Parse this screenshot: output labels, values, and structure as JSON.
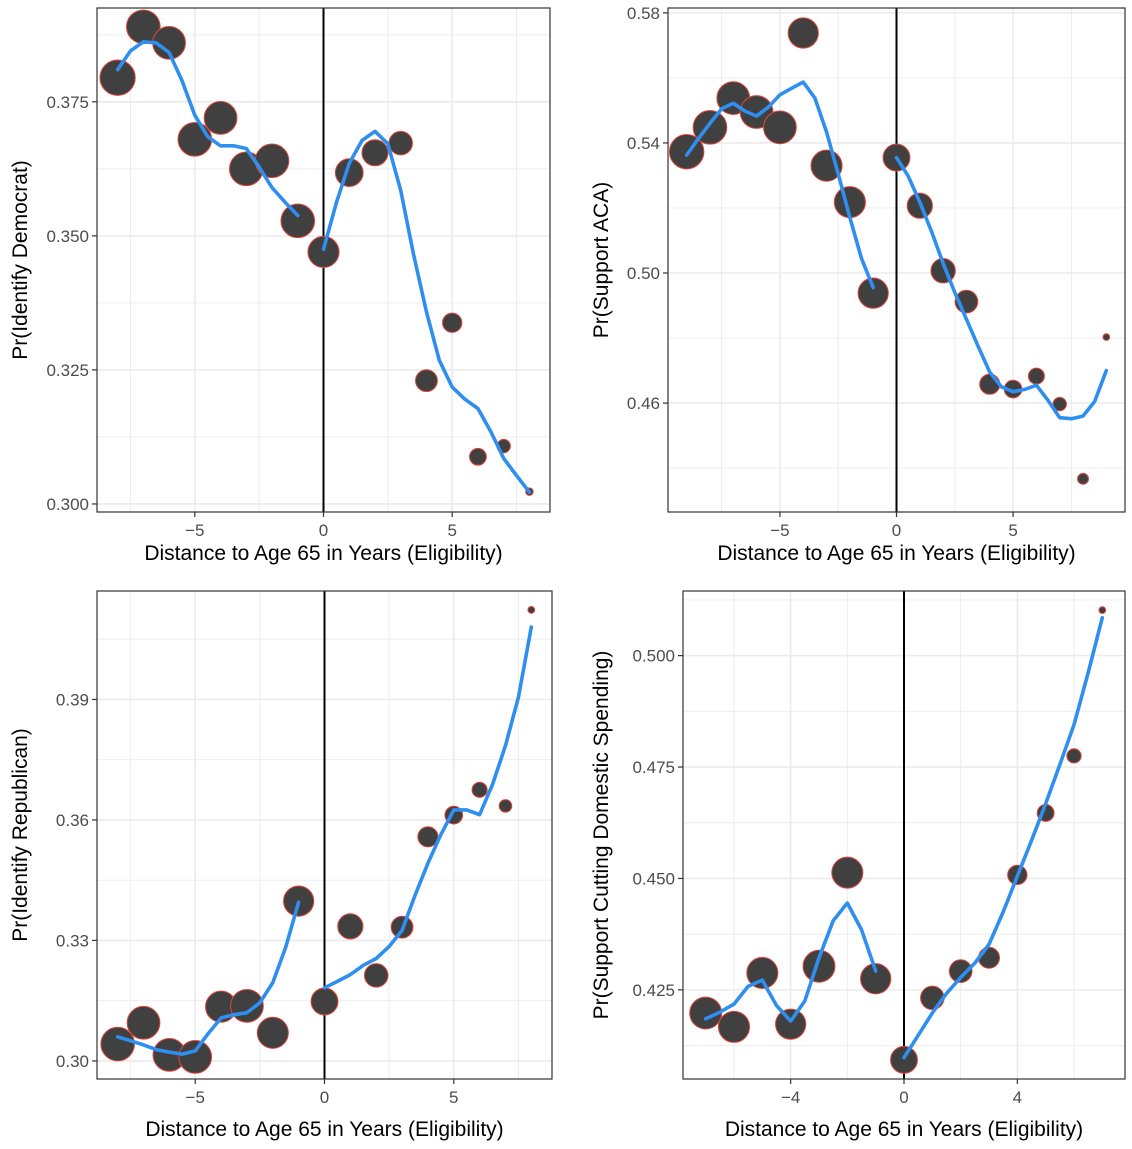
{
  "colors": {
    "point_fill": "#404040",
    "point_stroke": "#e0453a",
    "smooth_line": "#2f8ff0",
    "grid": "#ebebeb",
    "panel_border": "#333333",
    "cutoff_line": "#000000"
  },
  "chart_data": [
    {
      "type": "scatter",
      "ylabel": "Pr(Identify Democrat)",
      "xlabel": "Distance to Age 65 in Years (Eligibility)",
      "xlim": [
        -8.8,
        8.8
      ],
      "ylim": [
        0.2985,
        0.3925
      ],
      "x_ticks": [
        -5,
        0,
        5
      ],
      "x_tick_labels": [
        "−5",
        "0",
        "5"
      ],
      "y_ticks": [
        0.3,
        0.325,
        0.35,
        0.375
      ],
      "y_tick_labels": [
        "0.300",
        "0.325",
        "0.350",
        "0.375"
      ],
      "cutoff": 0,
      "points": [
        {
          "x": -8,
          "y": 0.3795,
          "size": 4.2
        },
        {
          "x": -7,
          "y": 0.389,
          "size": 4.0
        },
        {
          "x": -6,
          "y": 0.386,
          "size": 3.9
        },
        {
          "x": -5,
          "y": 0.368,
          "size": 4.0
        },
        {
          "x": -4,
          "y": 0.372,
          "size": 3.9
        },
        {
          "x": -3,
          "y": 0.3625,
          "size": 4.0
        },
        {
          "x": -2,
          "y": 0.364,
          "size": 4.0
        },
        {
          "x": -1,
          "y": 0.3528,
          "size": 4.0
        },
        {
          "x": 0,
          "y": 0.347,
          "size": 3.7
        },
        {
          "x": 1,
          "y": 0.3618,
          "size": 3.3
        },
        {
          "x": 2,
          "y": 0.3655,
          "size": 3.1
        },
        {
          "x": 3,
          "y": 0.3673,
          "size": 2.8
        },
        {
          "x": 4,
          "y": 0.323,
          "size": 2.6
        },
        {
          "x": 5,
          "y": 0.3338,
          "size": 2.3
        },
        {
          "x": 6,
          "y": 0.3088,
          "size": 2.0
        },
        {
          "x": 7,
          "y": 0.3108,
          "size": 1.6
        },
        {
          "x": 8,
          "y": 0.3023,
          "size": 0.9
        }
      ],
      "smooth_left": [
        [
          -8,
          0.381
        ],
        [
          -7.5,
          0.3845
        ],
        [
          -7,
          0.3862
        ],
        [
          -6.5,
          0.386
        ],
        [
          -6,
          0.3842
        ],
        [
          -5.5,
          0.379
        ],
        [
          -5,
          0.3725
        ],
        [
          -4.5,
          0.3685
        ],
        [
          -4,
          0.3668
        ],
        [
          -3.5,
          0.3668
        ],
        [
          -3,
          0.3663
        ],
        [
          -2.5,
          0.3628
        ],
        [
          -2,
          0.359
        ],
        [
          -1.5,
          0.3563
        ],
        [
          -1,
          0.3538
        ]
      ],
      "smooth_right": [
        [
          0,
          0.3475
        ],
        [
          0.5,
          0.3562
        ],
        [
          1,
          0.3635
        ],
        [
          1.5,
          0.3678
        ],
        [
          2,
          0.3695
        ],
        [
          2.5,
          0.3672
        ],
        [
          3,
          0.3585
        ],
        [
          3.5,
          0.3465
        ],
        [
          4,
          0.3358
        ],
        [
          4.5,
          0.3268
        ],
        [
          5,
          0.3218
        ],
        [
          5.5,
          0.3195
        ],
        [
          6,
          0.3178
        ],
        [
          6.5,
          0.3135
        ],
        [
          7,
          0.3085
        ],
        [
          7.5,
          0.3053
        ],
        [
          8,
          0.3022
        ]
      ]
    },
    {
      "type": "scatter",
      "ylabel": "Pr(Support ACA)",
      "xlabel": "Distance to Age 65 in Years (Eligibility)",
      "xlim": [
        -9.8,
        9.8
      ],
      "ylim": [
        0.4265,
        0.5815
      ],
      "x_ticks": [
        -5,
        0,
        5
      ],
      "x_tick_labels": [
        "−5",
        "0",
        "5"
      ],
      "y_ticks": [
        0.46,
        0.5,
        0.54,
        0.58
      ],
      "y_tick_labels": [
        "0.46",
        "0.50",
        "0.54",
        "0.58"
      ],
      "cutoff": 0,
      "points": [
        {
          "x": -9,
          "y": 0.5373,
          "size": 4.1
        },
        {
          "x": -8,
          "y": 0.5448,
          "size": 4.0
        },
        {
          "x": -7,
          "y": 0.5538,
          "size": 3.9
        },
        {
          "x": -6,
          "y": 0.5495,
          "size": 3.9
        },
        {
          "x": -5,
          "y": 0.5448,
          "size": 3.9
        },
        {
          "x": -4,
          "y": 0.5738,
          "size": 3.6
        },
        {
          "x": -3,
          "y": 0.533,
          "size": 3.7
        },
        {
          "x": -2,
          "y": 0.5218,
          "size": 3.7
        },
        {
          "x": -1,
          "y": 0.4938,
          "size": 3.6
        },
        {
          "x": 0,
          "y": 0.5355,
          "size": 3.2
        },
        {
          "x": 1,
          "y": 0.5207,
          "size": 3.0
        },
        {
          "x": 2,
          "y": 0.5007,
          "size": 2.9
        },
        {
          "x": 3,
          "y": 0.4912,
          "size": 2.7
        },
        {
          "x": 4,
          "y": 0.4658,
          "size": 2.4
        },
        {
          "x": 5,
          "y": 0.4643,
          "size": 2.1
        },
        {
          "x": 6,
          "y": 0.4683,
          "size": 1.9
        },
        {
          "x": 7,
          "y": 0.4597,
          "size": 1.6
        },
        {
          "x": 8,
          "y": 0.4367,
          "size": 1.3
        },
        {
          "x": 9,
          "y": 0.4803,
          "size": 0.8
        }
      ],
      "smooth_left": [
        [
          -9,
          0.5363
        ],
        [
          -8.5,
          0.5413
        ],
        [
          -8,
          0.546
        ],
        [
          -7.5,
          0.5505
        ],
        [
          -7,
          0.5522
        ],
        [
          -6.5,
          0.5498
        ],
        [
          -6,
          0.5483
        ],
        [
          -5.5,
          0.551
        ],
        [
          -5,
          0.5548
        ],
        [
          -4.5,
          0.5568
        ],
        [
          -4,
          0.5587
        ],
        [
          -3.5,
          0.5538
        ],
        [
          -3,
          0.5433
        ],
        [
          -2.5,
          0.5305
        ],
        [
          -2,
          0.517
        ],
        [
          -1.5,
          0.5045
        ],
        [
          -1,
          0.4955
        ]
      ],
      "smooth_right": [
        [
          0,
          0.5355
        ],
        [
          0.5,
          0.5298
        ],
        [
          1,
          0.5218
        ],
        [
          1.5,
          0.5128
        ],
        [
          2,
          0.503
        ],
        [
          2.5,
          0.494
        ],
        [
          3,
          0.4858
        ],
        [
          3.5,
          0.4775
        ],
        [
          4,
          0.4695
        ],
        [
          4.5,
          0.465
        ],
        [
          5,
          0.4635
        ],
        [
          5.5,
          0.4642
        ],
        [
          6,
          0.4655
        ],
        [
          6.5,
          0.4608
        ],
        [
          7,
          0.4555
        ],
        [
          7.5,
          0.4552
        ],
        [
          8,
          0.456
        ],
        [
          8.5,
          0.4605
        ],
        [
          9,
          0.47
        ]
      ]
    },
    {
      "type": "scatter",
      "ylabel": "Pr(Identify Republican)",
      "xlabel": "Distance to Age 65 in Years (Eligibility)",
      "xlim": [
        -8.8,
        8.8
      ],
      "ylim": [
        0.2955,
        0.417
      ],
      "x_ticks": [
        -5,
        0,
        5
      ],
      "x_tick_labels": [
        "−5",
        "0",
        "5"
      ],
      "y_ticks": [
        0.3,
        0.33,
        0.36,
        0.39
      ],
      "y_tick_labels": [
        "0.30",
        "0.33",
        "0.36",
        "0.39"
      ],
      "cutoff": 0,
      "points": [
        {
          "x": -8,
          "y": 0.3042,
          "size": 4.0
        },
        {
          "x": -7,
          "y": 0.3095,
          "size": 3.9
        },
        {
          "x": -6,
          "y": 0.3015,
          "size": 3.9
        },
        {
          "x": -5,
          "y": 0.301,
          "size": 3.9
        },
        {
          "x": -4,
          "y": 0.3135,
          "size": 3.7
        },
        {
          "x": -3,
          "y": 0.3137,
          "size": 3.9
        },
        {
          "x": -2,
          "y": 0.307,
          "size": 3.7
        },
        {
          "x": -1,
          "y": 0.3398,
          "size": 3.6
        },
        {
          "x": 0,
          "y": 0.3148,
          "size": 3.2
        },
        {
          "x": 1,
          "y": 0.3335,
          "size": 3.0
        },
        {
          "x": 2,
          "y": 0.3213,
          "size": 2.8
        },
        {
          "x": 3,
          "y": 0.3333,
          "size": 2.6
        },
        {
          "x": 4,
          "y": 0.3558,
          "size": 2.4
        },
        {
          "x": 5,
          "y": 0.3612,
          "size": 2.1
        },
        {
          "x": 6,
          "y": 0.3675,
          "size": 1.8
        },
        {
          "x": 7,
          "y": 0.3635,
          "size": 1.5
        },
        {
          "x": 8,
          "y": 0.4123,
          "size": 0.8
        }
      ],
      "smooth_left": [
        [
          -8,
          0.306
        ],
        [
          -7.5,
          0.305
        ],
        [
          -7,
          0.304
        ],
        [
          -6.5,
          0.3028
        ],
        [
          -6,
          0.3022
        ],
        [
          -5.5,
          0.3017
        ],
        [
          -5,
          0.3025
        ],
        [
          -4.5,
          0.3068
        ],
        [
          -4,
          0.3107
        ],
        [
          -3.5,
          0.3115
        ],
        [
          -3,
          0.312
        ],
        [
          -2.5,
          0.3145
        ],
        [
          -2,
          0.3195
        ],
        [
          -1.5,
          0.3283
        ],
        [
          -1,
          0.3395
        ]
      ],
      "smooth_right": [
        [
          0,
          0.3182
        ],
        [
          0.5,
          0.3198
        ],
        [
          1,
          0.3215
        ],
        [
          1.5,
          0.3238
        ],
        [
          2,
          0.3255
        ],
        [
          2.5,
          0.3285
        ],
        [
          3,
          0.3325
        ],
        [
          3.5,
          0.3412
        ],
        [
          4,
          0.3492
        ],
        [
          4.5,
          0.3563
        ],
        [
          5,
          0.3625
        ],
        [
          5.5,
          0.3625
        ],
        [
          6,
          0.3613
        ],
        [
          6.5,
          0.3688
        ],
        [
          7,
          0.3785
        ],
        [
          7.5,
          0.3905
        ],
        [
          8,
          0.408
        ]
      ]
    },
    {
      "type": "scatter",
      "ylabel": "Pr(Support Cutting Domestic Spending)",
      "xlabel": "Distance to Age 65 in Years (Eligibility)",
      "xlim": [
        -7.8,
        7.8
      ],
      "ylim": [
        0.405,
        0.5145
      ],
      "x_ticks": [
        -4,
        0,
        4
      ],
      "x_tick_labels": [
        "−4",
        "0",
        "4"
      ],
      "y_ticks": [
        0.425,
        0.45,
        0.475,
        0.5
      ],
      "y_tick_labels": [
        "0.425",
        "0.450",
        "0.475",
        "0.500"
      ],
      "cutoff": 0,
      "points": [
        {
          "x": -7,
          "y": 0.4198,
          "size": 3.8
        },
        {
          "x": -6,
          "y": 0.4167,
          "size": 3.7
        },
        {
          "x": -5,
          "y": 0.4288,
          "size": 3.7
        },
        {
          "x": -4,
          "y": 0.4173,
          "size": 3.6
        },
        {
          "x": -3,
          "y": 0.4303,
          "size": 3.8
        },
        {
          "x": -2,
          "y": 0.4513,
          "size": 3.7
        },
        {
          "x": -1,
          "y": 0.4275,
          "size": 3.6
        },
        {
          "x": 0,
          "y": 0.4093,
          "size": 3.2
        },
        {
          "x": 1,
          "y": 0.4232,
          "size": 2.8
        },
        {
          "x": 2,
          "y": 0.4292,
          "size": 2.7
        },
        {
          "x": 3,
          "y": 0.4322,
          "size": 2.5
        },
        {
          "x": 4,
          "y": 0.4508,
          "size": 2.3
        },
        {
          "x": 5,
          "y": 0.4647,
          "size": 2.0
        },
        {
          "x": 6,
          "y": 0.4775,
          "size": 1.7
        },
        {
          "x": 7,
          "y": 0.5102,
          "size": 0.8
        }
      ],
      "smooth_left": [
        [
          -7,
          0.4185
        ],
        [
          -6.5,
          0.42
        ],
        [
          -6,
          0.4218
        ],
        [
          -5.5,
          0.4258
        ],
        [
          -5,
          0.4272
        ],
        [
          -4.5,
          0.4215
        ],
        [
          -4,
          0.418
        ],
        [
          -3.5,
          0.4225
        ],
        [
          -3,
          0.4322
        ],
        [
          -2.5,
          0.4405
        ],
        [
          -2,
          0.4445
        ],
        [
          -1.5,
          0.4385
        ],
        [
          -1,
          0.4292
        ]
      ],
      "smooth_right": [
        [
          0,
          0.4098
        ],
        [
          0.5,
          0.4148
        ],
        [
          1,
          0.4198
        ],
        [
          1.5,
          0.4242
        ],
        [
          2,
          0.4278
        ],
        [
          2.5,
          0.431
        ],
        [
          3,
          0.4352
        ],
        [
          3.5,
          0.4425
        ],
        [
          4,
          0.4505
        ],
        [
          4.5,
          0.4585
        ],
        [
          5,
          0.4668
        ],
        [
          5.5,
          0.4755
        ],
        [
          6,
          0.4845
        ],
        [
          6.5,
          0.4962
        ],
        [
          7,
          0.5085
        ]
      ]
    }
  ]
}
